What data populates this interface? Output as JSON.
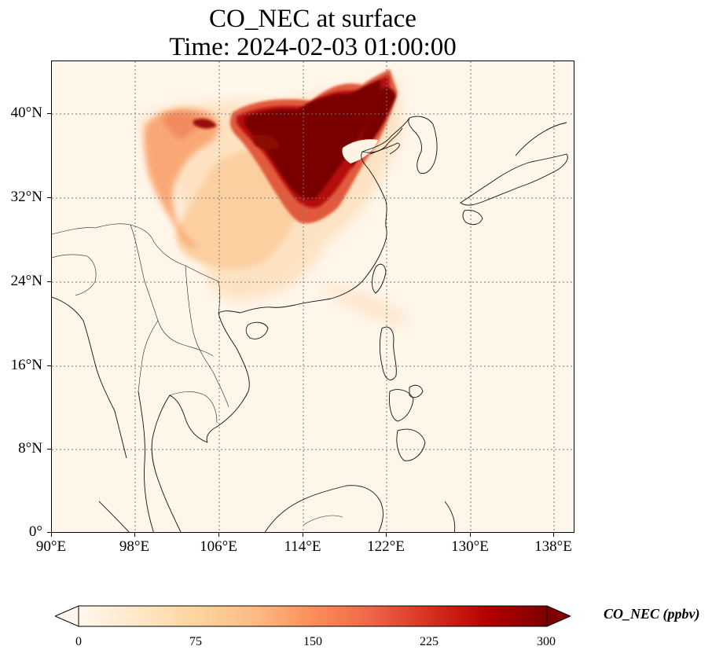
{
  "title": {
    "line1": "CO_NEC at surface",
    "line2": "Time: 2024-02-03 01:00:00"
  },
  "map": {
    "x_ticks": [
      "90°E",
      "98°E",
      "106°E",
      "114°E",
      "122°E",
      "130°E",
      "138°E"
    ],
    "y_ticks": [
      "40°N",
      "32°N",
      "24°N",
      "16°N",
      "8°N",
      "0°"
    ],
    "lon_range": [
      90,
      140
    ],
    "lat_range": [
      0,
      45
    ],
    "gridlines": "dotted",
    "background_color": "#fff6ea",
    "features": [
      "coastlines",
      "country-borders",
      "CO-plume-north-china"
    ]
  },
  "colorbar": {
    "label": "CO_NEC (ppbv)",
    "ticks": [
      "0",
      "75",
      "150",
      "225",
      "300"
    ],
    "range": [
      0,
      300
    ],
    "extend": "both",
    "colormap": "OrRd",
    "colors": [
      "#fff7ec",
      "#fee8c8",
      "#fdd49e",
      "#fdbb84",
      "#fc8d59",
      "#ef6548",
      "#d7301f",
      "#b30000",
      "#7f0000"
    ]
  }
}
